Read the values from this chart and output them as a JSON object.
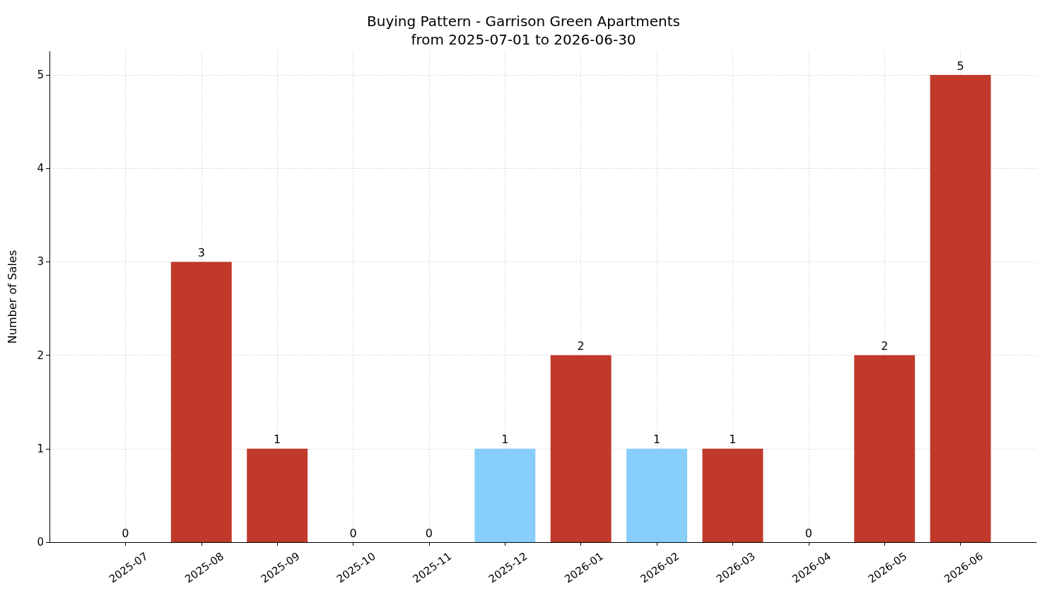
{
  "chart_data": {
    "type": "bar",
    "title": "Buying Pattern - Garrison Green Apartments\nfrom 2025-07-01 to 2026-06-30",
    "ylabel": "Number of Sales",
    "categories": [
      "2025-07",
      "2025-08",
      "2025-09",
      "2025-10",
      "2025-11",
      "2025-12",
      "2026-01",
      "2026-02",
      "2026-03",
      "2026-04",
      "2026-05",
      "2026-06"
    ],
    "values": [
      0,
      3,
      1,
      0,
      0,
      1,
      2,
      1,
      1,
      0,
      2,
      5
    ],
    "colors": [
      "#c0392b",
      "#c0392b",
      "#c0392b",
      "#c0392b",
      "#c0392b",
      "#87cefa",
      "#c0392b",
      "#87cefa",
      "#c0392b",
      "#c0392b",
      "#c0392b",
      "#c0392b"
    ],
    "ylim": [
      0,
      5.25
    ],
    "yticks": [
      0,
      1,
      2,
      3,
      4,
      5
    ],
    "grid": true,
    "data_labels": true
  }
}
